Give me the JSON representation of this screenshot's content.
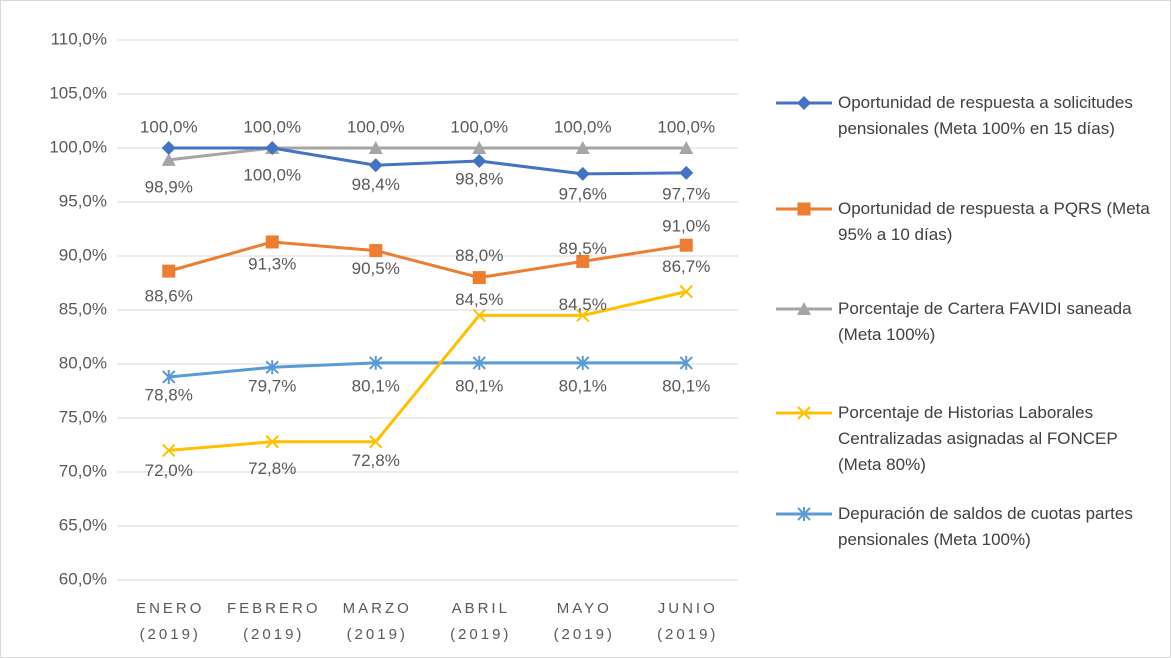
{
  "chart_data": {
    "type": "line",
    "categories": [
      "ENERO (2019)",
      "FEBRERO (2019)",
      "MARZO (2019)",
      "ABRIL (2019)",
      "MAYO (2019)",
      "JUNIO (2019)"
    ],
    "ylim": [
      60,
      110
    ],
    "yticks": [
      {
        "value": 60,
        "label": "60,0%"
      },
      {
        "value": 65,
        "label": "65,0%"
      },
      {
        "value": 70,
        "label": "70,0%"
      },
      {
        "value": 75,
        "label": "75,0%"
      },
      {
        "value": 80,
        "label": "80,0%"
      },
      {
        "value": 85,
        "label": "85,0%"
      },
      {
        "value": 90,
        "label": "90,0%"
      },
      {
        "value": 95,
        "label": "95,0%"
      },
      {
        "value": 100,
        "label": "100,0%"
      },
      {
        "value": 105,
        "label": "105,0%"
      },
      {
        "value": 110,
        "label": "110,0%"
      }
    ],
    "grid": true,
    "legend": "right",
    "series": [
      {
        "name": "Oportunidad de respuesta a solicitudes pensionales (Meta 100% en 15 días)",
        "color": "#4472c4",
        "marker": "diamond",
        "values": [
          100,
          100,
          98.4,
          98.8,
          97.6,
          97.7
        ],
        "value_labels": [
          "100,0%",
          "100,0%",
          "98,4%",
          "98,8%",
          "97,6%",
          "97,7%"
        ]
      },
      {
        "name": "Oportunidad de respuesta a PQRS (Meta 95% a 10 días)",
        "color": "#ed7d31",
        "marker": "square",
        "values": [
          88.6,
          91.3,
          90.5,
          88.0,
          89.5,
          91.0
        ],
        "value_labels": [
          "88,6%",
          "91,3%",
          "90,5%",
          "88,0%",
          "89,5%",
          "91,0%"
        ]
      },
      {
        "name": "Porcentaje de Cartera FAVIDI saneada (Meta 100%)",
        "color": "#a5a5a5",
        "marker": "triangle",
        "values": [
          98.9,
          100,
          100,
          100,
          100,
          100
        ],
        "value_labels": [
          "98,9%",
          "100,0%",
          "100,0%",
          "100,0%",
          "100,0%",
          "100,0%"
        ]
      },
      {
        "name": "Porcentaje de Historias Laborales Centralizadas asignadas al FONCEP (Meta 80%)",
        "color": "#ffc000",
        "marker": "x",
        "values": [
          72.0,
          72.8,
          72.8,
          84.5,
          84.5,
          86.7
        ],
        "value_labels": [
          "72,0%",
          "72,8%",
          "72,8%",
          "84,5%",
          "84,5%",
          "86,7%"
        ]
      },
      {
        "name": "Depuración de saldos de cuotas partes pensionales (Meta 100%)",
        "color": "#5b9bd5",
        "marker": "star",
        "values": [
          78.8,
          79.7,
          80.1,
          80.1,
          80.1,
          80.1
        ],
        "value_labels": [
          "78,8%",
          "79,7%",
          "80,1%",
          "80,1%",
          "80,1%",
          "80,1%"
        ]
      }
    ]
  }
}
